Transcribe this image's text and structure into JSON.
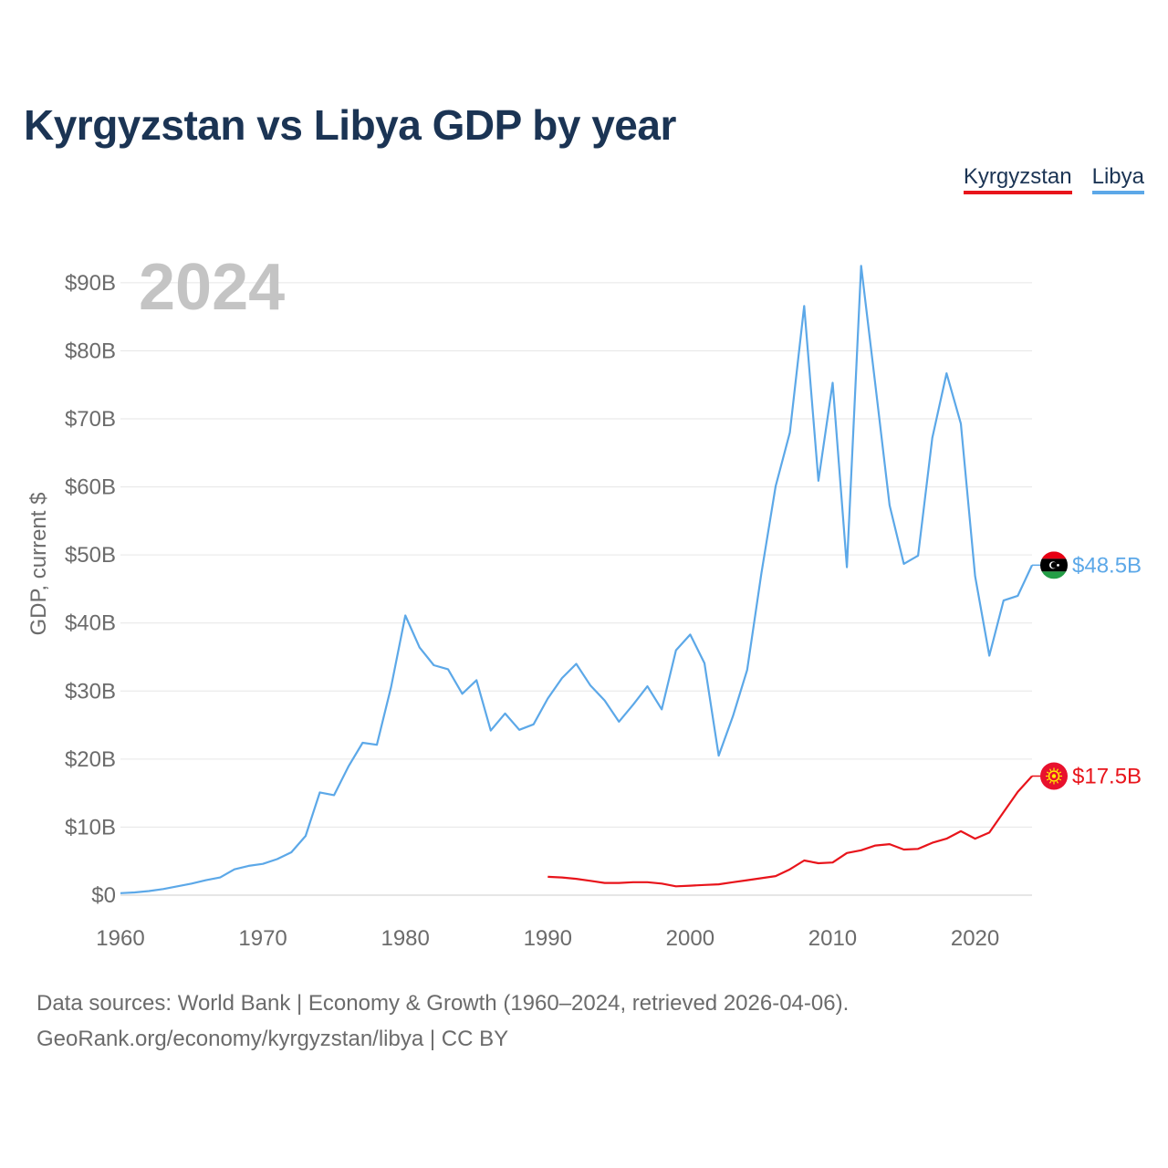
{
  "title": "Kyrgyzstan vs Libya GDP by year",
  "legend": [
    {
      "label": "Kyrgyzstan",
      "color": "#e8141b"
    },
    {
      "label": "Libya",
      "color": "#5ca8e8"
    }
  ],
  "year_label": "2024",
  "sources": {
    "line1": "Data sources: World Bank | Economy & Growth (1960–2024, retrieved 2026-04-06).",
    "line2": "GeoRank.org/economy/kyrgyzstan/libya | CC BY"
  },
  "chart_data": {
    "type": "line",
    "title": "Kyrgyzstan vs Libya GDP by year",
    "xlabel": "",
    "ylabel": "GDP, current $",
    "xlim": [
      1960,
      2024
    ],
    "ylim": [
      0,
      92
    ],
    "x_ticks": [
      1960,
      1970,
      1980,
      1990,
      2000,
      2010,
      2020
    ],
    "y_ticks": [
      0,
      10,
      20,
      30,
      40,
      50,
      60,
      70,
      80,
      90
    ],
    "y_tick_labels": [
      "$0",
      "$10B",
      "$20B",
      "$30B",
      "$40B",
      "$50B",
      "$60B",
      "$70B",
      "$80B",
      "$90B"
    ],
    "units": "billions of current US$",
    "grid": true,
    "series": [
      {
        "name": "Kyrgyzstan",
        "color": "#e8141b",
        "end_label": "$17.5B",
        "x": [
          1990,
          1991,
          1992,
          1993,
          1994,
          1995,
          1996,
          1997,
          1998,
          1999,
          2000,
          2001,
          2002,
          2003,
          2004,
          2005,
          2006,
          2007,
          2008,
          2009,
          2010,
          2011,
          2012,
          2013,
          2014,
          2015,
          2016,
          2017,
          2018,
          2019,
          2020,
          2021,
          2022,
          2023,
          2024
        ],
        "values": [
          2.7,
          2.6,
          2.4,
          2.1,
          1.8,
          1.8,
          1.9,
          1.9,
          1.7,
          1.3,
          1.4,
          1.5,
          1.6,
          1.9,
          2.2,
          2.5,
          2.8,
          3.8,
          5.1,
          4.7,
          4.8,
          6.2,
          6.6,
          7.3,
          7.5,
          6.7,
          6.8,
          7.7,
          8.3,
          9.4,
          8.3,
          9.2,
          12.2,
          15.2,
          17.5
        ]
      },
      {
        "name": "Libya",
        "color": "#5ca8e8",
        "end_label": "$48.5B",
        "x": [
          1960,
          1961,
          1962,
          1963,
          1964,
          1965,
          1966,
          1967,
          1968,
          1969,
          1970,
          1971,
          1972,
          1973,
          1974,
          1975,
          1976,
          1977,
          1978,
          1979,
          1980,
          1981,
          1982,
          1983,
          1984,
          1985,
          1986,
          1987,
          1988,
          1989,
          1990,
          1991,
          1992,
          1993,
          1994,
          1995,
          1996,
          1997,
          1998,
          1999,
          2000,
          2001,
          2002,
          2003,
          2004,
          2005,
          2006,
          2007,
          2008,
          2009,
          2010,
          2011,
          2012,
          2013,
          2014,
          2015,
          2016,
          2017,
          2018,
          2019,
          2020,
          2021,
          2022,
          2023,
          2024
        ],
        "values": [
          0.3,
          0.4,
          0.6,
          0.9,
          1.3,
          1.7,
          2.2,
          2.6,
          3.8,
          4.3,
          4.6,
          5.3,
          6.3,
          8.7,
          15.1,
          14.7,
          18.9,
          22.4,
          22.1,
          30.6,
          41.1,
          36.4,
          33.8,
          33.2,
          29.6,
          31.6,
          24.2,
          26.7,
          24.3,
          25.1,
          28.9,
          31.9,
          34.0,
          30.8,
          28.6,
          25.5,
          28.0,
          30.7,
          27.3,
          36.0,
          38.3,
          34.1,
          20.5,
          26.3,
          33.1,
          47.3,
          60.1,
          68.0,
          86.6,
          60.9,
          75.3,
          48.2,
          92.5,
          75.0,
          57.3,
          48.7,
          49.9,
          67.2,
          76.7,
          69.3,
          46.9,
          35.2,
          43.3,
          44.0,
          48.5
        ]
      }
    ]
  }
}
